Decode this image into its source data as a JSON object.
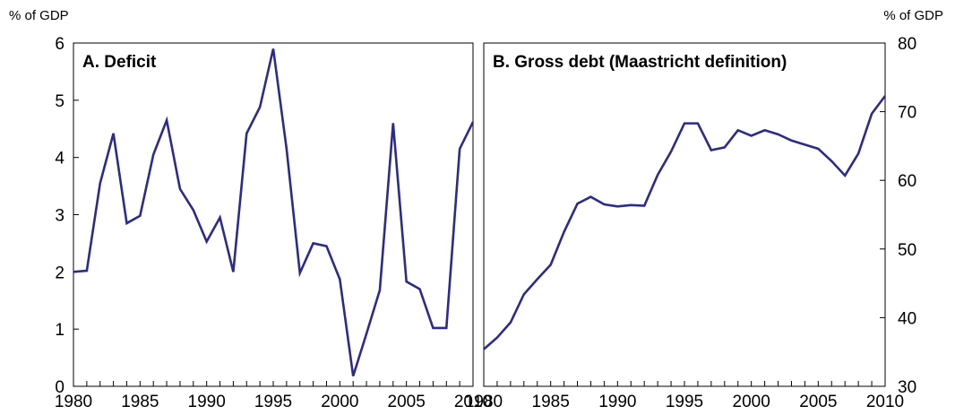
{
  "chart_data": [
    {
      "type": "line",
      "title": "A. Deficit",
      "ylabel": "% of GDP",
      "xlabel": "",
      "ylim": [
        0,
        6
      ],
      "yticks": [
        "0",
        "1",
        "2",
        "3",
        "4",
        "5",
        "6"
      ],
      "xlim": [
        1980,
        2010
      ],
      "xticks": [
        "1980",
        "1985",
        "1990",
        "1995",
        "2000",
        "2005",
        "2010"
      ],
      "grid": false,
      "color": "#2b2b8a",
      "series": [
        {
          "x": [
            1980,
            1981,
            1982,
            1983,
            1984,
            1985,
            1986,
            1987,
            1988,
            1989,
            1990,
            1991,
            1992,
            1993,
            1994,
            1995,
            1996,
            1997,
            1998,
            1999,
            2000,
            2001,
            2002,
            2003,
            2004,
            2005,
            2006,
            2007,
            2008,
            2009,
            2010
          ],
          "values": [
            2.0,
            2.02,
            3.55,
            4.42,
            2.85,
            2.98,
            4.05,
            4.65,
            3.45,
            3.08,
            2.53,
            2.95,
            2.0,
            4.42,
            4.88,
            5.9,
            4.15,
            1.98,
            2.5,
            2.45,
            1.87,
            0.18,
            0.92,
            1.68,
            4.6,
            1.83,
            1.7,
            1.02,
            1.02,
            4.15,
            4.62
          ]
        }
      ]
    },
    {
      "type": "line",
      "title": "B. Gross debt (Maastricht definition)",
      "ylabel": "% of GDP",
      "xlabel": "",
      "ylim": [
        30,
        80
      ],
      "yticks": [
        "30",
        "40",
        "50",
        "60",
        "70",
        "80"
      ],
      "xlim": [
        1980,
        2010
      ],
      "xticks": [
        "1980",
        "1985",
        "1990",
        "1995",
        "2000",
        "2005",
        "2010"
      ],
      "grid": false,
      "color": "#2b2b8a",
      "series": [
        {
          "x": [
            1980,
            1981,
            1982,
            1983,
            1984,
            1985,
            1986,
            1987,
            1988,
            1989,
            1990,
            1991,
            1992,
            1993,
            1994,
            1995,
            1996,
            1997,
            1998,
            1999,
            2000,
            2001,
            2002,
            2003,
            2004,
            2005,
            2006,
            2007,
            2008,
            2009,
            2010
          ],
          "values": [
            35.4,
            37.1,
            39.3,
            43.4,
            45.6,
            47.7,
            52.5,
            56.6,
            57.6,
            56.5,
            56.2,
            56.4,
            56.3,
            60.8,
            64.2,
            68.3,
            68.3,
            64.4,
            64.8,
            67.3,
            66.5,
            67.3,
            66.7,
            65.8,
            65.2,
            64.6,
            62.8,
            60.7,
            63.9,
            69.7,
            72.3
          ]
        }
      ]
    }
  ]
}
